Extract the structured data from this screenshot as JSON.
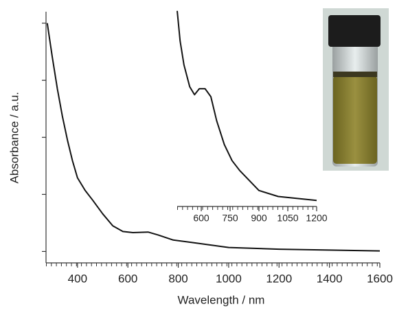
{
  "chart_data": [
    {
      "type": "line",
      "x_label": "Wavelength / nm",
      "y_label": "Absorbance / a.u.",
      "xlim": [
        275,
        1600
      ],
      "xticks": [
        400,
        600,
        800,
        1000,
        1200,
        1400,
        1600
      ],
      "ylim": [
        -0.2,
        4.2
      ],
      "yticks": [
        0,
        1,
        2,
        3,
        4
      ],
      "series": [
        {
          "color": "#111111",
          "x": [
            280,
            290,
            300,
            320,
            340,
            360,
            380,
            400,
            430,
            460,
            500,
            540,
            580,
            620,
            680,
            720,
            780,
            850,
            1000,
            1200,
            1600
          ],
          "values": [
            4.0,
            3.7,
            3.4,
            2.85,
            2.37,
            1.95,
            1.59,
            1.29,
            1.07,
            0.9,
            0.66,
            0.45,
            0.35,
            0.33,
            0.34,
            0.29,
            0.2,
            0.16,
            0.07,
            0.04,
            0.01
          ]
        }
      ]
    },
    {
      "type": "line",
      "xlim": [
        475,
        1200
      ],
      "xticks": [
        600,
        750,
        900,
        1050,
        1200
      ],
      "ylim": [
        0,
        1
      ],
      "series": [
        {
          "color": "#111111",
          "x": [
            475,
            490,
            510,
            540,
            565,
            590,
            620,
            650,
            680,
            720,
            760,
            800,
            850,
            900,
            1000,
            1200
          ],
          "values": [
            0.98,
            0.83,
            0.71,
            0.6,
            0.56,
            0.59,
            0.59,
            0.55,
            0.43,
            0.31,
            0.23,
            0.18,
            0.13,
            0.08,
            0.05,
            0.03
          ]
        }
      ]
    }
  ]
}
